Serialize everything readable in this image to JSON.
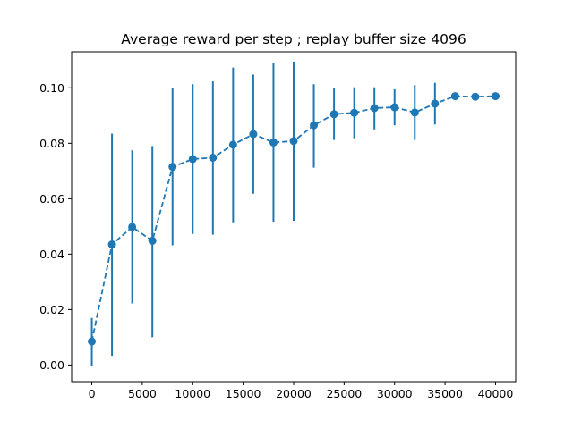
{
  "chart_data": {
    "type": "line",
    "title": "Average reward per step ; replay buffer size 4096",
    "xlabel": "",
    "ylabel": "",
    "xlim": [
      -2000,
      42000
    ],
    "ylim": [
      -0.006,
      0.113
    ],
    "xticks": [
      0,
      5000,
      10000,
      15000,
      20000,
      25000,
      30000,
      35000,
      40000
    ],
    "xtick_labels": [
      "0",
      "5000",
      "10000",
      "15000",
      "20000",
      "25000",
      "30000",
      "35000",
      "40000"
    ],
    "yticks": [
      0.0,
      0.02,
      0.04,
      0.06,
      0.08,
      0.1
    ],
    "ytick_labels": [
      "0.00",
      "0.02",
      "0.04",
      "0.06",
      "0.08",
      "0.10"
    ],
    "grid": false,
    "line_style": "dashed",
    "marker": "circle",
    "error_bars": true,
    "color": "#1f77b4",
    "series": [
      {
        "x": [
          0,
          2000,
          4000,
          6000,
          8000,
          10000,
          12000,
          14000,
          16000,
          18000,
          20000,
          22000,
          24000,
          26000,
          28000,
          30000,
          32000,
          34000,
          36000,
          38000,
          40000
        ],
        "y": [
          0.0085,
          0.0435,
          0.0498,
          0.0448,
          0.0715,
          0.0743,
          0.0748,
          0.0795,
          0.0833,
          0.0803,
          0.0808,
          0.0865,
          0.0905,
          0.091,
          0.0927,
          0.093,
          0.0911,
          0.0943,
          0.097,
          0.0968,
          0.097
        ],
        "err_low": [
          -0.0003,
          0.0033,
          0.0222,
          0.01,
          0.0432,
          0.0473,
          0.047,
          0.0515,
          0.0618,
          0.0517,
          0.052,
          0.0712,
          0.0812,
          0.0818,
          0.085,
          0.0865,
          0.0812,
          0.0868,
          0.0965,
          0.0965,
          0.0965
        ],
        "err_high": [
          0.017,
          0.0835,
          0.0775,
          0.079,
          0.0998,
          0.1013,
          0.1023,
          0.1073,
          0.1048,
          0.1088,
          0.1095,
          0.1013,
          0.0998,
          0.1002,
          0.1002,
          0.0995,
          0.101,
          0.1018,
          0.0978,
          0.0972,
          0.0975
        ]
      }
    ]
  }
}
